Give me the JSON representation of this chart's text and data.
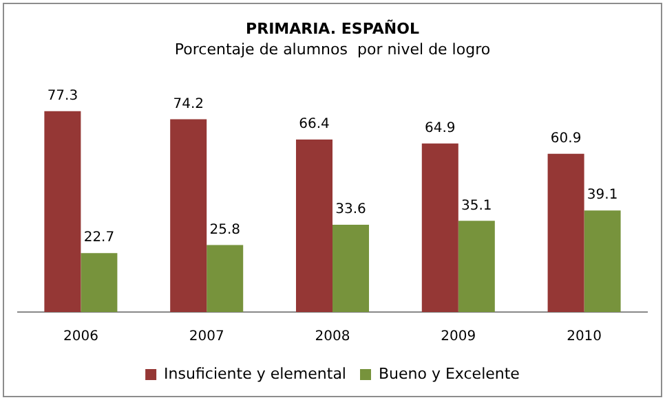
{
  "chart_data": {
    "type": "bar",
    "title": "PRIMARIA. ESPAÑOL",
    "subtitle": "Porcentaje de alumnos  por nivel de logro",
    "categories": [
      "2006",
      "2007",
      "2008",
      "2009",
      "2010"
    ],
    "series": [
      {
        "name": "Insuficiente y elemental",
        "color": "#953735",
        "values": [
          77.3,
          74.2,
          66.4,
          64.9,
          60.9
        ]
      },
      {
        "name": "Bueno y Excelente",
        "color": "#77933c",
        "values": [
          22.7,
          25.8,
          33.6,
          35.1,
          39.1
        ]
      }
    ],
    "data_labels": true,
    "legend": "bottom",
    "grid": false
  }
}
